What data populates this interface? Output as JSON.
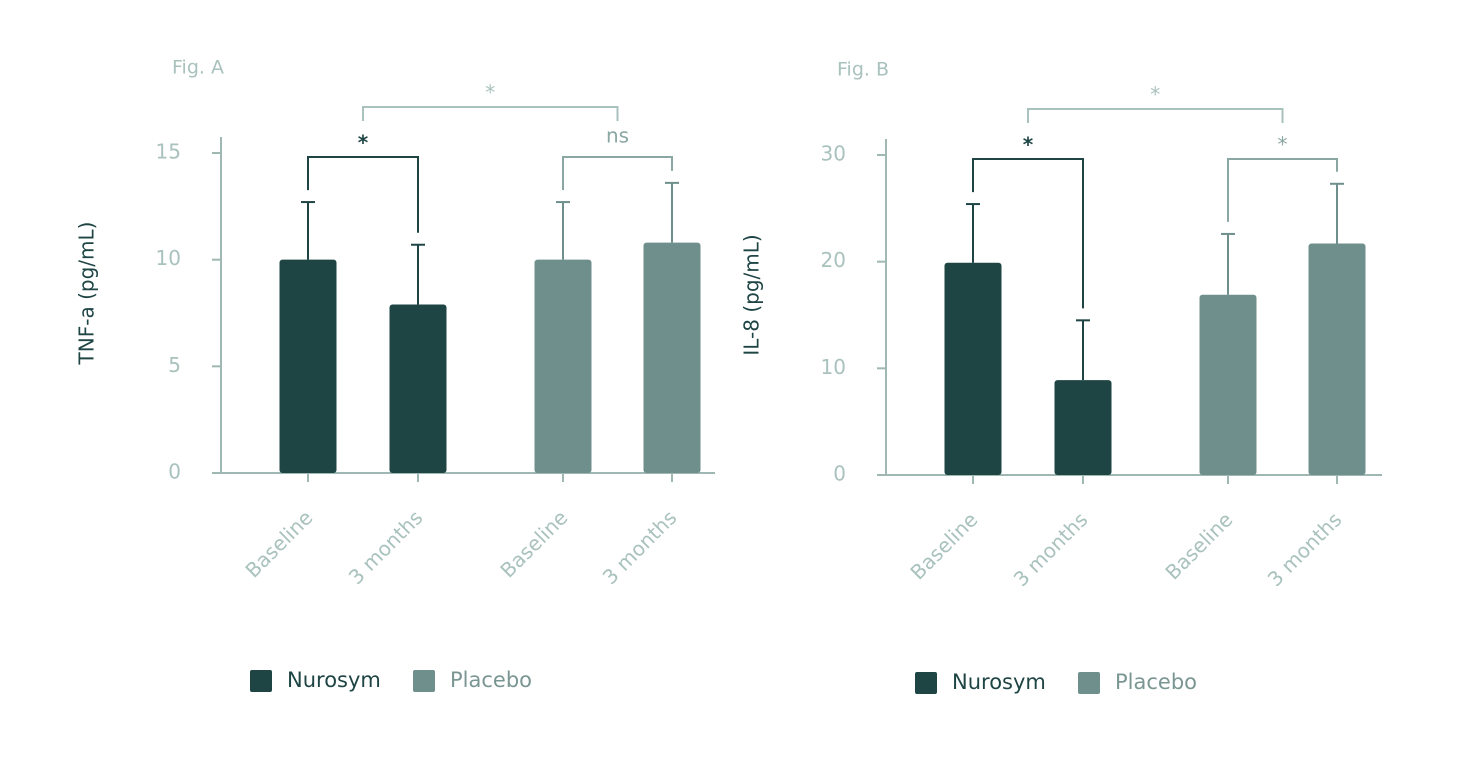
{
  "chart_data": [
    {
      "type": "bar",
      "label": "Fig. A",
      "ylabel": "TNF-a (pg/mL)",
      "categories": [
        "Baseline",
        "3 months",
        "Baseline",
        "3 months"
      ],
      "series": [
        {
          "name": "Nurosym",
          "color": "#1e4444",
          "values": [
            10,
            7.9,
            null,
            null
          ],
          "errors": [
            2.7,
            2.8,
            null,
            null
          ]
        },
        {
          "name": "Placebo",
          "color": "#6f8f8c",
          "values": [
            null,
            null,
            10,
            10.8
          ],
          "errors": [
            null,
            null,
            2.7,
            2.8
          ]
        }
      ],
      "ylim": [
        0,
        15
      ],
      "yticks": [
        0,
        5,
        10,
        15
      ],
      "annotations": [
        {
          "text": "*",
          "between": [
            0,
            1
          ],
          "color": "#1e4444"
        },
        {
          "text": "ns",
          "between": [
            2,
            3
          ],
          "color": "#8aa7a3"
        },
        {
          "text": "*",
          "between": [
            0,
            1,
            2,
            3
          ],
          "color": "#a9c2bd"
        }
      ]
    },
    {
      "type": "bar",
      "label": "Fig. B",
      "ylabel": "IL-8 (pg/mL)",
      "categories": [
        "Baseline",
        "3 months",
        "Baseline",
        "3 months"
      ],
      "series": [
        {
          "name": "Nurosym",
          "color": "#1e4444",
          "values": [
            19.9,
            8.9,
            null,
            null
          ],
          "errors": [
            5.5,
            5.6,
            null,
            null
          ]
        },
        {
          "name": "Placebo",
          "color": "#6f8f8c",
          "values": [
            null,
            null,
            16.9,
            21.7
          ],
          "errors": [
            null,
            null,
            5.7,
            5.6
          ]
        }
      ],
      "ylim": [
        0,
        30
      ],
      "yticks": [
        0,
        10,
        20,
        30
      ],
      "annotations": [
        {
          "text": "*",
          "between": [
            0,
            1
          ],
          "color": "#1e4444"
        },
        {
          "text": "*",
          "between": [
            2,
            3
          ],
          "color": "#8aa7a3"
        },
        {
          "text": "*",
          "between": [
            0,
            1,
            2,
            3
          ],
          "color": "#a9c2bd"
        }
      ]
    }
  ]
}
